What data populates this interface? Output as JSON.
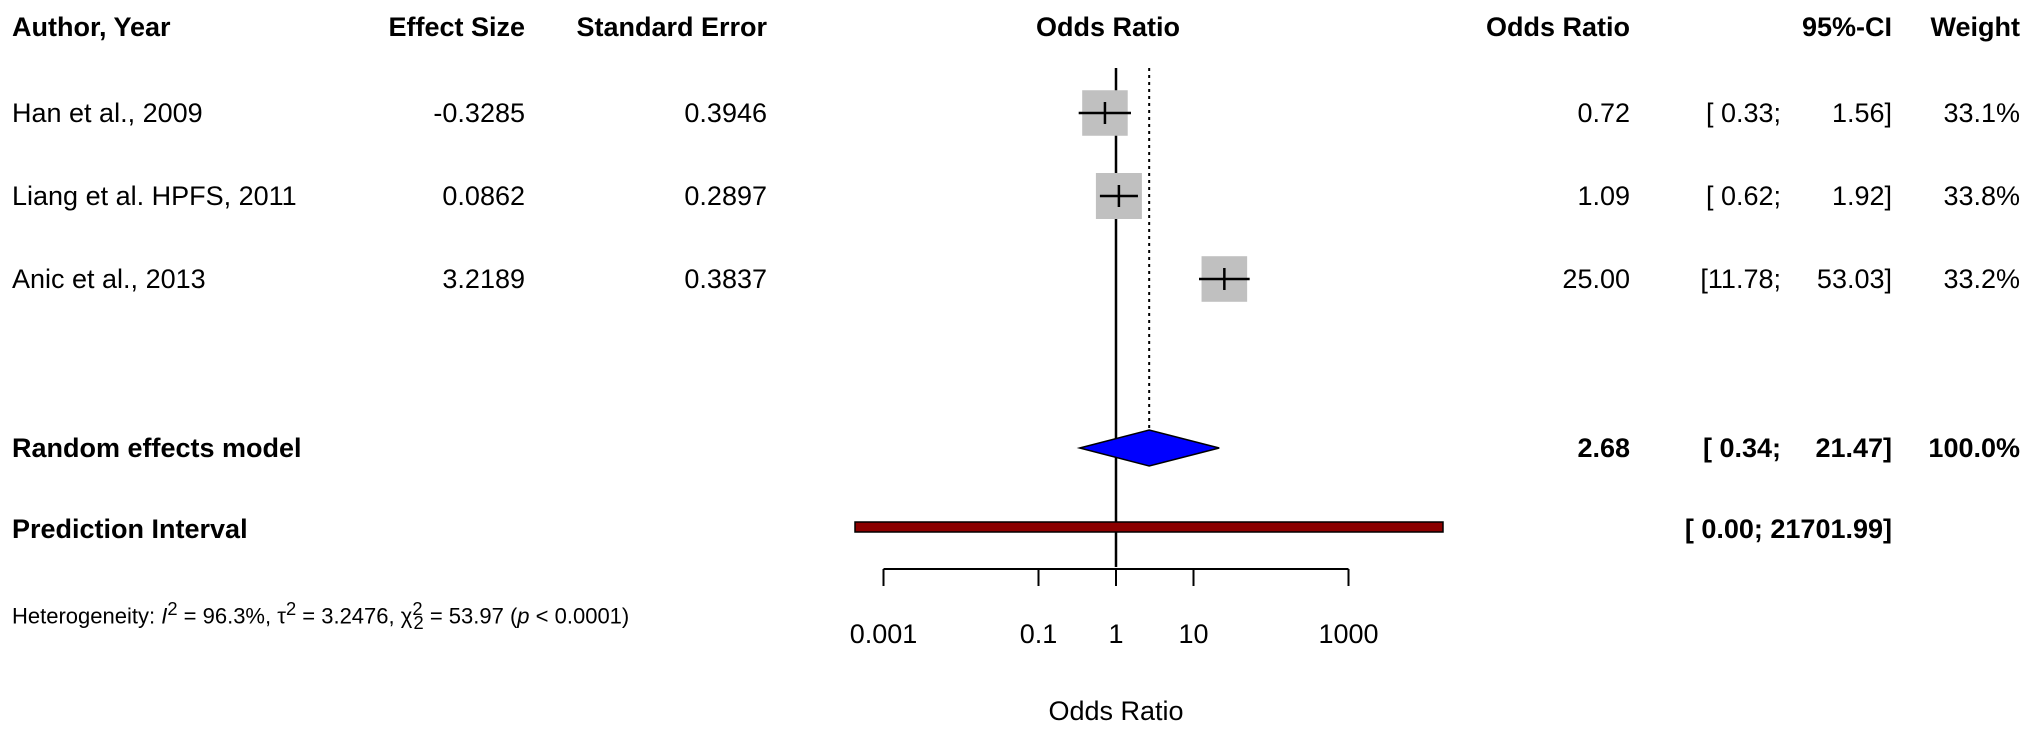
{
  "headers": {
    "study": "Author, Year",
    "effect_size": "Effect Size",
    "standard_error": "Standard Error",
    "plot": "Odds Ratio",
    "or": "Odds Ratio",
    "ci": "95%-CI",
    "weight": "Weight"
  },
  "studies": [
    {
      "label": "Han et al., 2009",
      "effect_size": "-0.3285",
      "se": "0.3946",
      "or": "0.72",
      "ci_lo": "[ 0.33;",
      "ci_hi": "1.56]",
      "weight": "33.1%"
    },
    {
      "label": "Liang et al. HPFS, 2011",
      "effect_size": "0.0862",
      "se": "0.2897",
      "or": "1.09",
      "ci_lo": "[ 0.62;",
      "ci_hi": "1.92]",
      "weight": "33.8%"
    },
    {
      "label": "Anic et al., 2013",
      "effect_size": "3.2189",
      "se": "0.3837",
      "or": "25.00",
      "ci_lo": "[11.78;",
      "ci_hi": "53.03]",
      "weight": "33.2%"
    }
  ],
  "random_model": {
    "label": "Random effects model",
    "or": "2.68",
    "ci_lo": "[ 0.34;",
    "ci_hi": "21.47]",
    "weight": "100.0%"
  },
  "prediction": {
    "label": "Prediction Interval",
    "ci": "[ 0.00; 21701.99]"
  },
  "heterogeneity": {
    "prefix": "Heterogeneity: ",
    "i2": "= 96.3%, ",
    "tau2": "= 3.2476, ",
    "chi2": "= 53.97 (",
    "p_close": " < 0.0001)"
  },
  "colors": {
    "diamond": "#0000ff",
    "prediction": "#8b0000",
    "box": "#c0c0c0"
  },
  "chart_data": {
    "type": "forest",
    "xlabel": "Odds Ratio",
    "x_scale": "log10",
    "x_ticks": [
      0.001,
      0.1,
      1,
      10,
      1000
    ],
    "x_tick_labels": [
      "0.001",
      "0.1",
      "1",
      "10",
      "1000"
    ],
    "reference_line": 1,
    "pooled_line": 2.68,
    "studies": [
      {
        "or": 0.72,
        "lo": 0.33,
        "hi": 1.56,
        "weight": 33.1
      },
      {
        "or": 1.09,
        "lo": 0.62,
        "hi": 1.92,
        "weight": 33.8
      },
      {
        "or": 25.0,
        "lo": 11.78,
        "hi": 53.03,
        "weight": 33.2
      }
    ],
    "pooled": {
      "or": 2.68,
      "lo": 0.34,
      "hi": 21.47
    },
    "prediction": {
      "lo": 1e-05,
      "hi": 21701.99
    }
  }
}
